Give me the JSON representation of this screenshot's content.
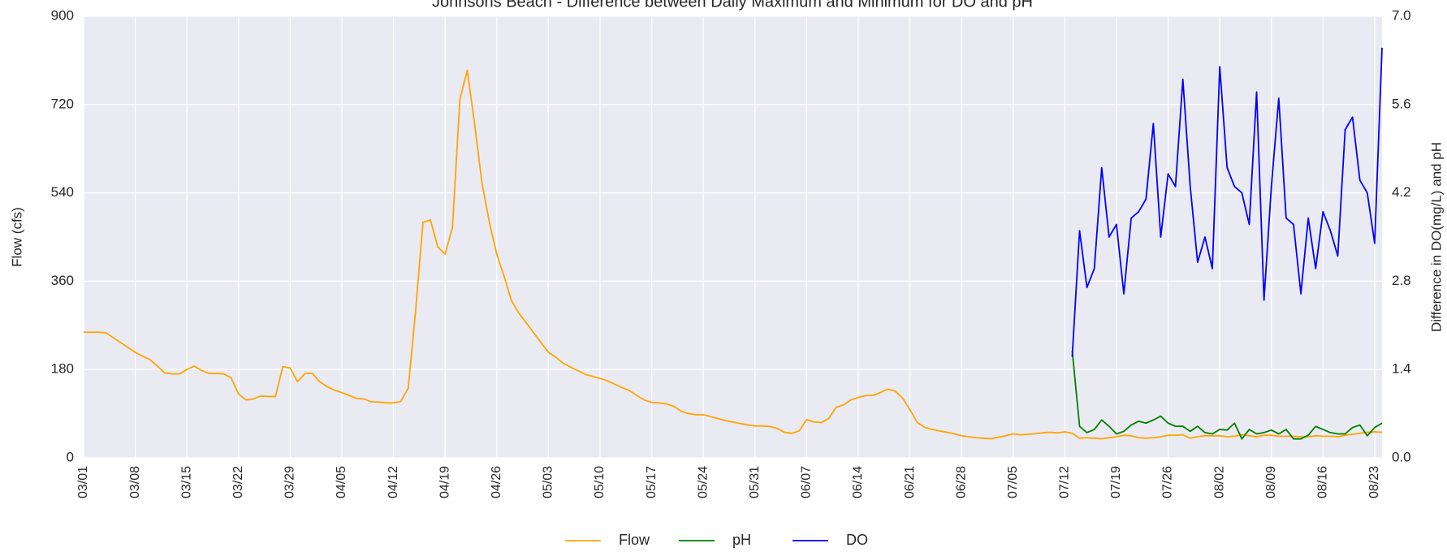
{
  "chart_data": {
    "type": "line",
    "title": "Johnsons Beach - Difference between Daily Maximum and Minimum for DO and pH",
    "y_label": "Flow (cfs)",
    "y2_label": "Difference in DO(mg/L) and pH",
    "grid": true,
    "legend": "bottom",
    "categories": [
      "03/01",
      null,
      null,
      null,
      null,
      null,
      null,
      "03/08",
      null,
      null,
      null,
      null,
      null,
      null,
      "03/15",
      null,
      null,
      null,
      null,
      null,
      null,
      "03/22",
      null,
      null,
      null,
      null,
      null,
      null,
      "03/29",
      null,
      null,
      null,
      null,
      null,
      null,
      "04/05",
      null,
      null,
      null,
      null,
      null,
      null,
      "04/12",
      null,
      null,
      null,
      null,
      null,
      null,
      "04/19",
      null,
      null,
      null,
      null,
      null,
      null,
      "04/26",
      null,
      null,
      null,
      null,
      null,
      null,
      "05/03",
      null,
      null,
      null,
      null,
      null,
      null,
      "05/10",
      null,
      null,
      null,
      null,
      null,
      null,
      "05/17",
      null,
      null,
      null,
      null,
      null,
      null,
      "05/24",
      null,
      null,
      null,
      null,
      null,
      null,
      "05/31",
      null,
      null,
      null,
      null,
      null,
      null,
      "06/07",
      null,
      null,
      null,
      null,
      null,
      null,
      "06/14",
      null,
      null,
      null,
      null,
      null,
      null,
      "06/21",
      null,
      null,
      null,
      null,
      null,
      null,
      "06/28",
      null,
      null,
      null,
      null,
      null,
      null,
      "07/05",
      null,
      null,
      null,
      null,
      null,
      null,
      "07/12",
      null,
      null,
      null,
      null,
      null,
      null,
      "07/19",
      null,
      null,
      null,
      null,
      null,
      null,
      "07/26",
      null,
      null,
      null,
      null,
      null,
      null,
      "08/02",
      null,
      null,
      null,
      null,
      null,
      null,
      "08/09",
      null,
      null,
      null,
      null,
      null,
      null,
      "08/16",
      null,
      null,
      null,
      null,
      null,
      null,
      "08/23",
      null
    ],
    "ylim": [
      0,
      900
    ],
    "yticks": [
      0,
      180,
      360,
      540,
      720,
      900
    ],
    "y2lim": [
      0,
      7
    ],
    "y2ticks": [
      {
        "value": 0,
        "label": "0.0"
      },
      1.4,
      2.8,
      4.2,
      5.6,
      {
        "value": 7,
        "label": "7.0"
      }
    ],
    "series": [
      {
        "name": "Flow",
        "color": "#ffa500",
        "values": [
          256,
          256,
          256,
          255,
          245,
          235,
          225,
          215,
          207,
          200,
          187,
          173,
          171,
          171,
          180,
          187,
          178,
          172,
          172,
          171,
          163,
          130,
          118,
          120,
          126,
          125,
          125,
          186,
          183,
          155,
          172,
          172,
          155,
          145,
          138,
          133,
          127,
          121,
          120,
          114,
          114,
          112,
          112,
          115,
          142,
          300,
          480,
          485,
          430,
          415,
          470,
          730,
          790,
          680,
          560,
          480,
          415,
          370,
          320,
          295,
          275,
          255,
          235,
          215,
          205,
          193,
          185,
          178,
          170,
          166,
          162,
          157,
          150,
          143,
          137,
          127,
          118,
          113,
          112,
          110,
          105,
          95,
          90,
          88,
          88,
          84,
          80,
          76,
          73,
          70,
          67,
          65,
          65,
          64,
          60,
          52,
          50,
          55,
          78,
          73,
          72,
          80,
          103,
          108,
          118,
          123,
          127,
          127,
          133,
          140,
          136,
          122,
          98,
          72,
          62,
          58,
          55,
          52,
          49,
          45,
          43,
          41,
          40,
          39,
          42,
          45,
          49,
          47,
          48,
          49,
          51,
          52,
          51,
          53,
          50,
          40,
          41,
          40,
          39,
          41,
          43,
          46,
          45,
          41,
          40,
          41,
          43,
          46,
          46,
          47,
          40,
          43,
          45,
          45,
          45,
          43,
          44,
          47,
          45,
          43,
          46,
          46,
          44,
          44,
          44,
          43,
          43,
          45,
          44,
          44,
          43,
          46,
          48,
          50,
          52,
          53,
          52
        ]
      },
      {
        "name": "pH",
        "color": "#008000",
        "axis": "y2",
        "values": [
          null,
          null,
          null,
          null,
          null,
          null,
          null,
          null,
          null,
          null,
          null,
          null,
          null,
          null,
          null,
          null,
          null,
          null,
          null,
          null,
          null,
          null,
          null,
          null,
          null,
          null,
          null,
          null,
          null,
          null,
          null,
          null,
          null,
          null,
          null,
          null,
          null,
          null,
          null,
          null,
          null,
          null,
          null,
          null,
          null,
          null,
          null,
          null,
          null,
          null,
          null,
          null,
          null,
          null,
          null,
          null,
          null,
          null,
          null,
          null,
          null,
          null,
          null,
          null,
          null,
          null,
          null,
          null,
          null,
          null,
          null,
          null,
          null,
          null,
          null,
          null,
          null,
          null,
          null,
          null,
          null,
          null,
          null,
          null,
          null,
          null,
          null,
          null,
          null,
          null,
          null,
          null,
          null,
          null,
          null,
          null,
          null,
          null,
          null,
          null,
          null,
          null,
          null,
          null,
          null,
          null,
          null,
          null,
          null,
          null,
          null,
          null,
          null,
          null,
          null,
          null,
          null,
          null,
          null,
          null,
          null,
          null,
          null,
          null,
          null,
          null,
          null,
          null,
          null,
          null,
          null,
          null,
          null,
          null,
          1.7,
          0.5,
          0.4,
          0.45,
          0.6,
          0.5,
          0.38,
          0.42,
          0.52,
          0.58,
          0.55,
          0.6,
          0.66,
          0.55,
          0.5,
          0.5,
          0.42,
          0.5,
          0.4,
          0.38,
          0.45,
          0.44,
          0.55,
          0.3,
          0.45,
          0.38,
          0.4,
          0.44,
          0.38,
          0.45,
          0.3,
          0.3,
          0.36,
          0.5,
          0.45,
          0.4,
          0.38,
          0.38,
          0.48,
          0.52,
          0.35,
          0.48,
          0.55
        ]
      },
      {
        "name": "DO",
        "color": "#0000ff",
        "axis": "y2",
        "values": [
          null,
          null,
          null,
          null,
          null,
          null,
          null,
          null,
          null,
          null,
          null,
          null,
          null,
          null,
          null,
          null,
          null,
          null,
          null,
          null,
          null,
          null,
          null,
          null,
          null,
          null,
          null,
          null,
          null,
          null,
          null,
          null,
          null,
          null,
          null,
          null,
          null,
          null,
          null,
          null,
          null,
          null,
          null,
          null,
          null,
          null,
          null,
          null,
          null,
          null,
          null,
          null,
          null,
          null,
          null,
          null,
          null,
          null,
          null,
          null,
          null,
          null,
          null,
          null,
          null,
          null,
          null,
          null,
          null,
          null,
          null,
          null,
          null,
          null,
          null,
          null,
          null,
          null,
          null,
          null,
          null,
          null,
          null,
          null,
          null,
          null,
          null,
          null,
          null,
          null,
          null,
          null,
          null,
          null,
          null,
          null,
          null,
          null,
          null,
          null,
          null,
          null,
          null,
          null,
          null,
          null,
          null,
          null,
          null,
          null,
          null,
          null,
          null,
          null,
          null,
          null,
          null,
          null,
          null,
          null,
          null,
          null,
          null,
          null,
          null,
          null,
          null,
          null,
          null,
          null,
          null,
          null,
          null,
          null,
          1.6,
          3.6,
          2.7,
          3.0,
          4.6,
          3.5,
          3.7,
          2.6,
          3.8,
          3.9,
          4.1,
          5.3,
          3.5,
          4.5,
          4.3,
          6.0,
          4.3,
          3.1,
          3.5,
          3.0,
          6.2,
          4.6,
          4.3,
          4.2,
          3.7,
          5.8,
          2.5,
          4.3,
          5.7,
          3.8,
          3.7,
          2.6,
          3.8,
          3.0,
          3.9,
          3.6,
          3.2,
          5.2,
          5.4,
          4.4,
          4.2,
          3.4,
          6.5
        ]
      }
    ]
  }
}
